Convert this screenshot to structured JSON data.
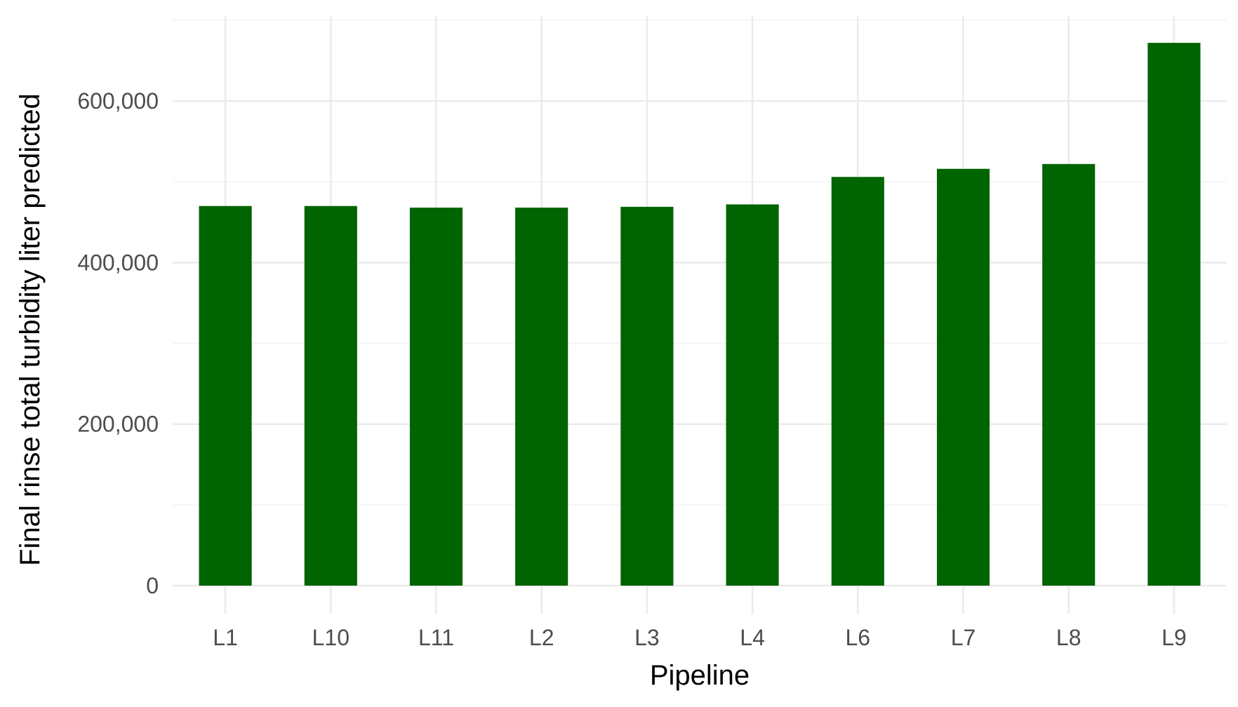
{
  "chart_data": {
    "type": "bar",
    "categories": [
      "L1",
      "L10",
      "L11",
      "L2",
      "L3",
      "L4",
      "L6",
      "L7",
      "L8",
      "L9"
    ],
    "values": [
      470000,
      470000,
      468000,
      468000,
      469000,
      472000,
      506000,
      516000,
      522000,
      672000
    ],
    "xlabel": "Pipeline",
    "ylabel": "Final rinse total turbidity liter predicted",
    "ylim": [
      0,
      700000
    ],
    "yticks": [
      0,
      200000,
      400000,
      600000
    ],
    "ytick_labels": [
      "0",
      "200,000",
      "400,000",
      "600,000"
    ],
    "grid": true,
    "bar_color": "#006400"
  }
}
